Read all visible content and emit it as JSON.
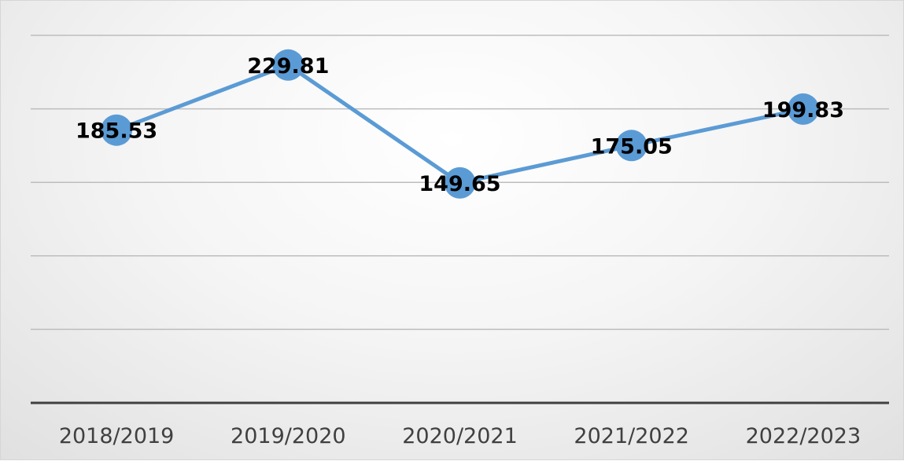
{
  "chart_data": {
    "type": "line",
    "categories": [
      "2018/2019",
      "2019/2020",
      "2020/2021",
      "2021/2022",
      "2022/2023"
    ],
    "series": [
      {
        "values": [
          185.53,
          229.81,
          149.65,
          175.05,
          199.83
        ],
        "color": "#5b9bd5"
      }
    ],
    "data_labels": [
      "185.53",
      "229.81",
      "149.65",
      "175.05",
      "199.83"
    ],
    "title": "",
    "xlabel": "",
    "ylabel": "",
    "ylim": [
      0,
      250
    ],
    "y_axis_labels_visible": false,
    "gridlines": true,
    "legend": "none"
  }
}
